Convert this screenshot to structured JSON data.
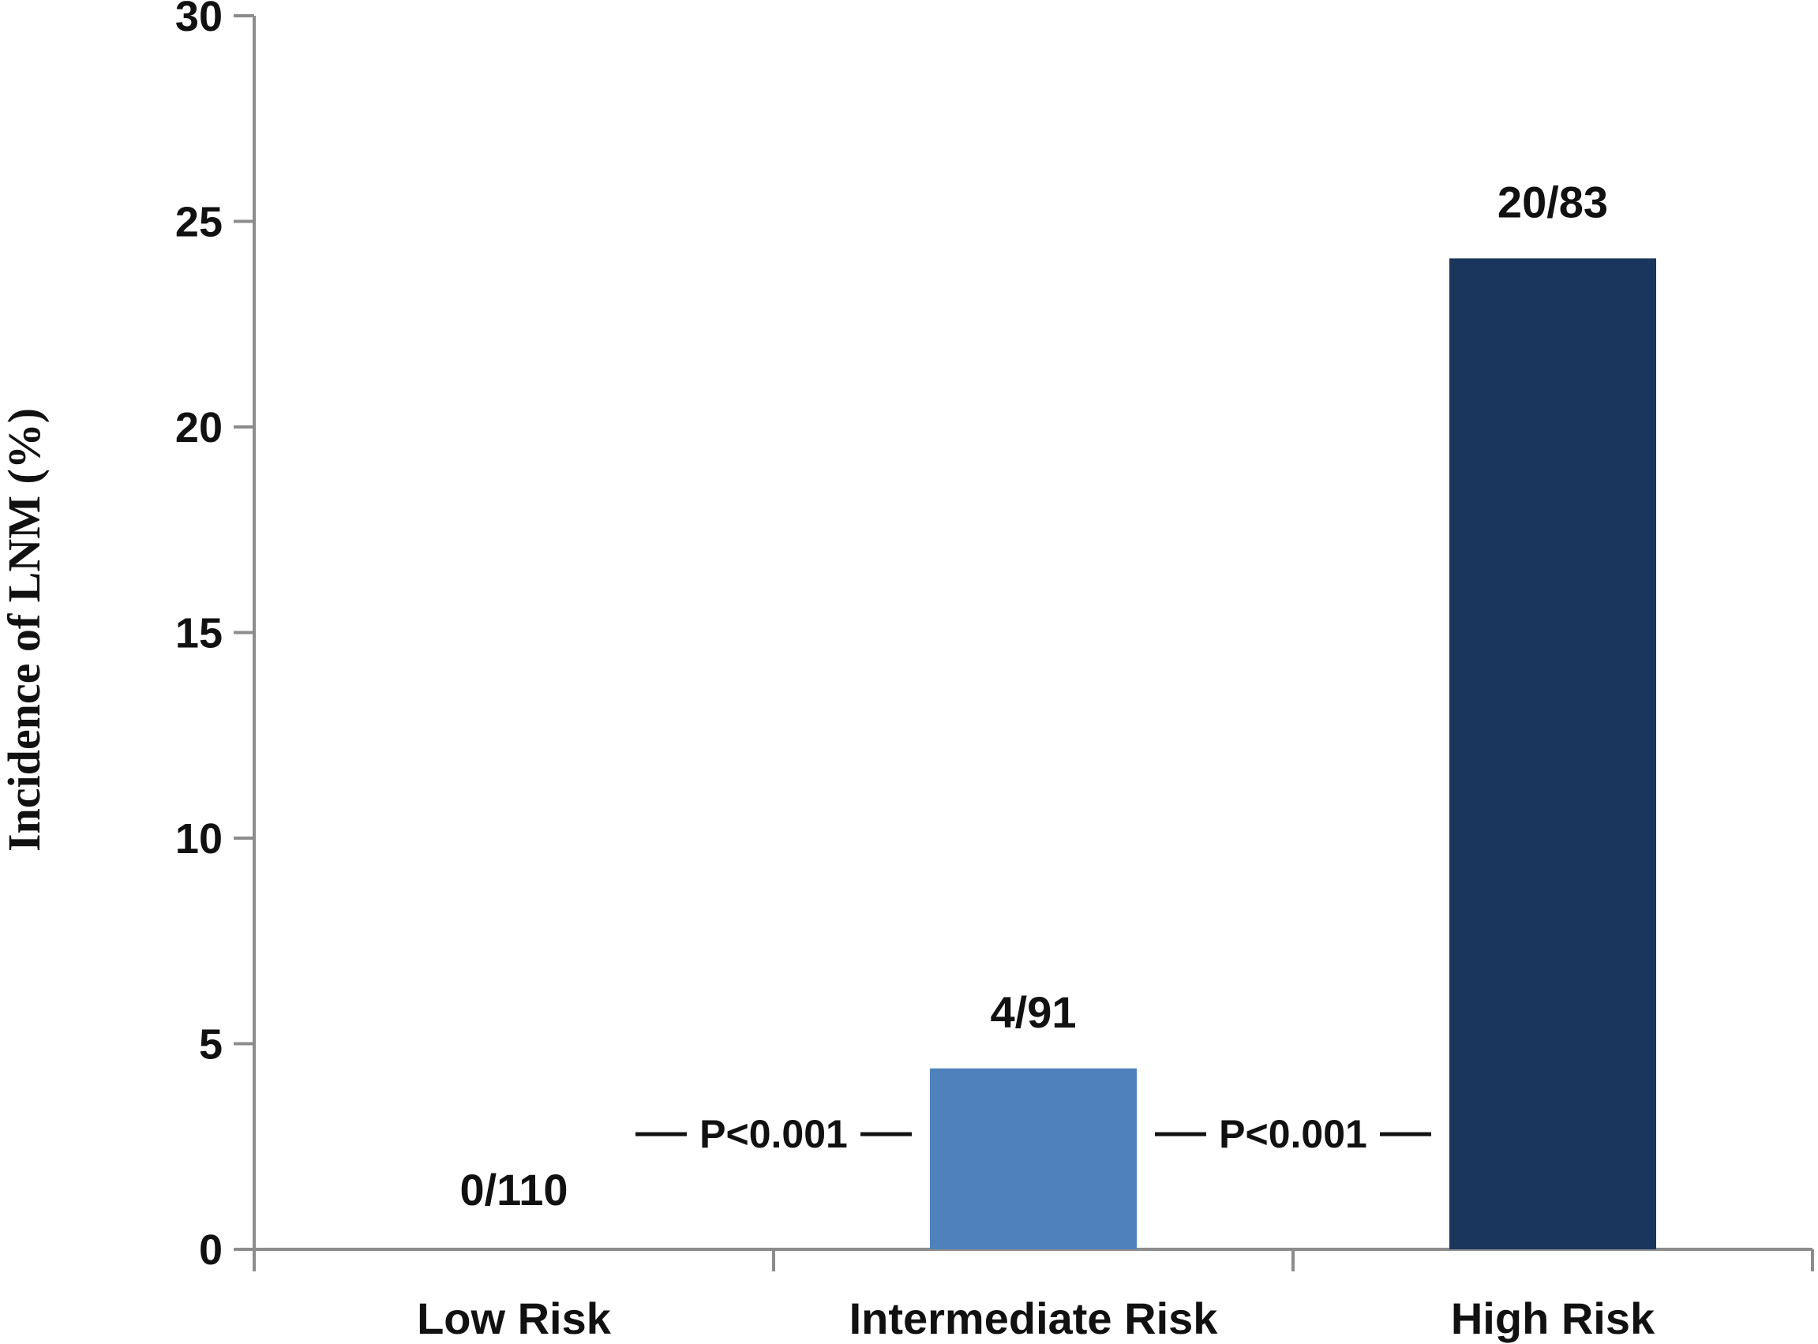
{
  "chart_data": {
    "type": "bar",
    "ylabel": "Incidence of LNM (%)",
    "xlabel": "",
    "ylim": [
      0,
      30
    ],
    "yticks": [
      0,
      5,
      10,
      15,
      20,
      25,
      30
    ],
    "grid": false,
    "categories": [
      "Low Risk",
      "Intermediate Risk",
      "High Risk"
    ],
    "values": [
      0,
      4.4,
      24.1
    ],
    "data_labels": [
      "0/110",
      "4/91",
      "20/83"
    ],
    "colors": [
      "#4f81bd",
      "#4f81bd",
      "#1b365d"
    ],
    "annotations": [
      {
        "text": "P<0.001",
        "between": [
          "Low Risk",
          "Intermediate Risk"
        ],
        "y": 2.8
      },
      {
        "text": "P<0.001",
        "between": [
          "Intermediate Risk",
          "High Risk"
        ],
        "y": 2.8
      }
    ]
  }
}
